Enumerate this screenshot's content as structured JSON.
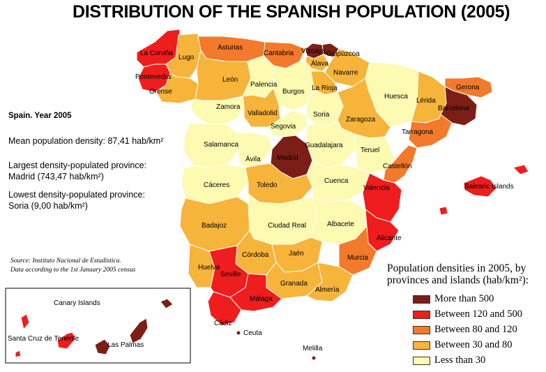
{
  "title": "DISTRIBUTION OF THE SPANISH POPULATION (2005)",
  "info": {
    "heading": "Spain. Year 2005",
    "mean_line": "Mean population density: 87,41 hab/km²",
    "largest_label": "Largest density-populated province:",
    "largest_value": "Madrid (743,47 hab/km²)",
    "lowest_label": "Lowest density-populated province:",
    "lowest_value": "Soria (9,00 hab/km²)"
  },
  "source": {
    "line1": "Source: Instituto Nacional de Estadística.",
    "line2": "Data according to the 1st January 2005 census"
  },
  "legend": {
    "title_line1": "Population densities in 2005, by",
    "title_line2": "provinces and islands (hab/km²):",
    "items": [
      {
        "label": "More than 500",
        "color": "#7b1f16"
      },
      {
        "label": "Between 120 and 500",
        "color": "#ef1d1d"
      },
      {
        "label": "Between 80 and 120",
        "color": "#f37a2b"
      },
      {
        "label": "Between 30 and 80",
        "color": "#f7b43a"
      },
      {
        "label": "Less than 30",
        "color": "#fdfab2"
      }
    ]
  },
  "provinces": [
    {
      "name": "La Coruña",
      "category": 1
    },
    {
      "name": "Lugo",
      "category": 3
    },
    {
      "name": "Asturias",
      "category": 2
    },
    {
      "name": "Cantabria",
      "category": 2
    },
    {
      "name": "Vizcaya",
      "category": 0
    },
    {
      "name": "Guipúzcoa",
      "category": 0
    },
    {
      "name": "Álava",
      "category": 3
    },
    {
      "name": "Navarre",
      "category": 3
    },
    {
      "name": "Pontevedra",
      "category": 1
    },
    {
      "name": "Orense",
      "category": 3
    },
    {
      "name": "León",
      "category": 3
    },
    {
      "name": "Palencia",
      "category": 4
    },
    {
      "name": "Burgos",
      "category": 4
    },
    {
      "name": "La Rioja",
      "category": 3
    },
    {
      "name": "Huesca",
      "category": 4
    },
    {
      "name": "Lérida",
      "category": 3
    },
    {
      "name": "Gerona",
      "category": 2
    },
    {
      "name": "Barcelona",
      "category": 0
    },
    {
      "name": "Zamora",
      "category": 4
    },
    {
      "name": "Valladolid",
      "category": 3
    },
    {
      "name": "Soria",
      "category": 4
    },
    {
      "name": "Zaragoza",
      "category": 3
    },
    {
      "name": "Tarragona",
      "category": 2
    },
    {
      "name": "Segovia",
      "category": 4
    },
    {
      "name": "Salamanca",
      "category": 4
    },
    {
      "name": "Guadalajara",
      "category": 4
    },
    {
      "name": "Teruel",
      "category": 4
    },
    {
      "name": "Ávila",
      "category": 4
    },
    {
      "name": "Madrid",
      "category": 0
    },
    {
      "name": "Castellón",
      "category": 2
    },
    {
      "name": "Cáceres",
      "category": 4
    },
    {
      "name": "Toledo",
      "category": 3
    },
    {
      "name": "Cuenca",
      "category": 4
    },
    {
      "name": "Valencia",
      "category": 1
    },
    {
      "name": "Badajoz",
      "category": 3
    },
    {
      "name": "Ciudad Real",
      "category": 4
    },
    {
      "name": "Albacete",
      "category": 4
    },
    {
      "name": "Alicante",
      "category": 1
    },
    {
      "name": "Córdoba",
      "category": 3
    },
    {
      "name": "Jaén",
      "category": 3
    },
    {
      "name": "Murcia",
      "category": 2
    },
    {
      "name": "Huelva",
      "category": 3
    },
    {
      "name": "Seville",
      "category": 1
    },
    {
      "name": "Granada",
      "category": 3
    },
    {
      "name": "Almería",
      "category": 3
    },
    {
      "name": "Cádiz",
      "category": 1
    },
    {
      "name": "Málaga",
      "category": 1
    },
    {
      "name": "Balearic Islands",
      "category": 1
    },
    {
      "name": "Ceuta",
      "category": 0
    },
    {
      "name": "Melilla",
      "category": 0
    },
    {
      "name": "Santa Cruz de Tenerife",
      "category": 1
    },
    {
      "name": "Las Palmas",
      "category": 0
    }
  ],
  "inset_label": "Canary Islands",
  "colors": {
    "border": "#ffffff",
    "inset_frame": "#000000"
  }
}
